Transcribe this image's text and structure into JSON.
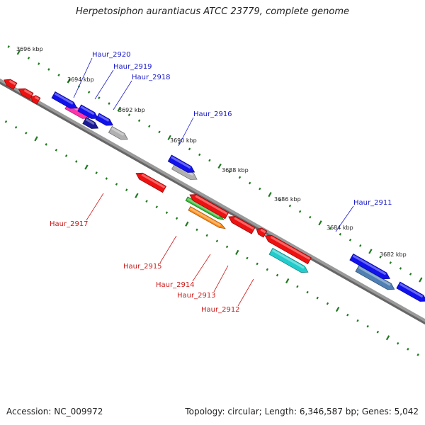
{
  "title": "Herpetosiphon aurantiacus ATCC 23779, complete genome",
  "footer": {
    "accession": "Accession: NC_009972",
    "stats": "Topology: circular; Length: 6,346,587 bp; Genes: 5,042"
  },
  "colors": {
    "backbone": "#8c8c8c",
    "ticks": "#1f7a1f",
    "forward_label": "#1a1acc",
    "reverse_label": "#cc1a1a"
  },
  "scale": {
    "unit": "kbp",
    "ticks": [
      {
        "label": "3696 kbp"
      },
      {
        "label": "3694 kbp"
      },
      {
        "label": "3692 kbp"
      },
      {
        "label": "3690 kbp"
      },
      {
        "label": "3688 kbp"
      },
      {
        "label": "3686 kbp"
      },
      {
        "label": "3684 kbp"
      },
      {
        "label": "3682 kbp"
      }
    ]
  },
  "genes_forward": [
    {
      "name": "Haur_2920",
      "color": "#ff33aa"
    },
    {
      "name": "Haur_2919",
      "color": "#1a1a99"
    },
    {
      "name": "Haur_2918",
      "color": "#b0b0b0"
    },
    {
      "name": "Haur_2916",
      "color": "#b0b0b0"
    },
    {
      "name": "Haur_2911",
      "color": "#4f7fb3"
    }
  ],
  "genes_reverse": [
    {
      "name": "Haur_2917",
      "color": "#ee1111"
    },
    {
      "name": "Haur_2915",
      "color": "#33bb33"
    },
    {
      "name": "Haur_2914",
      "color": "#ff8811"
    },
    {
      "name": "Haur_2913",
      "color": "#ee1111"
    },
    {
      "name": "Haur_2912",
      "color": "#22cccc"
    }
  ]
}
